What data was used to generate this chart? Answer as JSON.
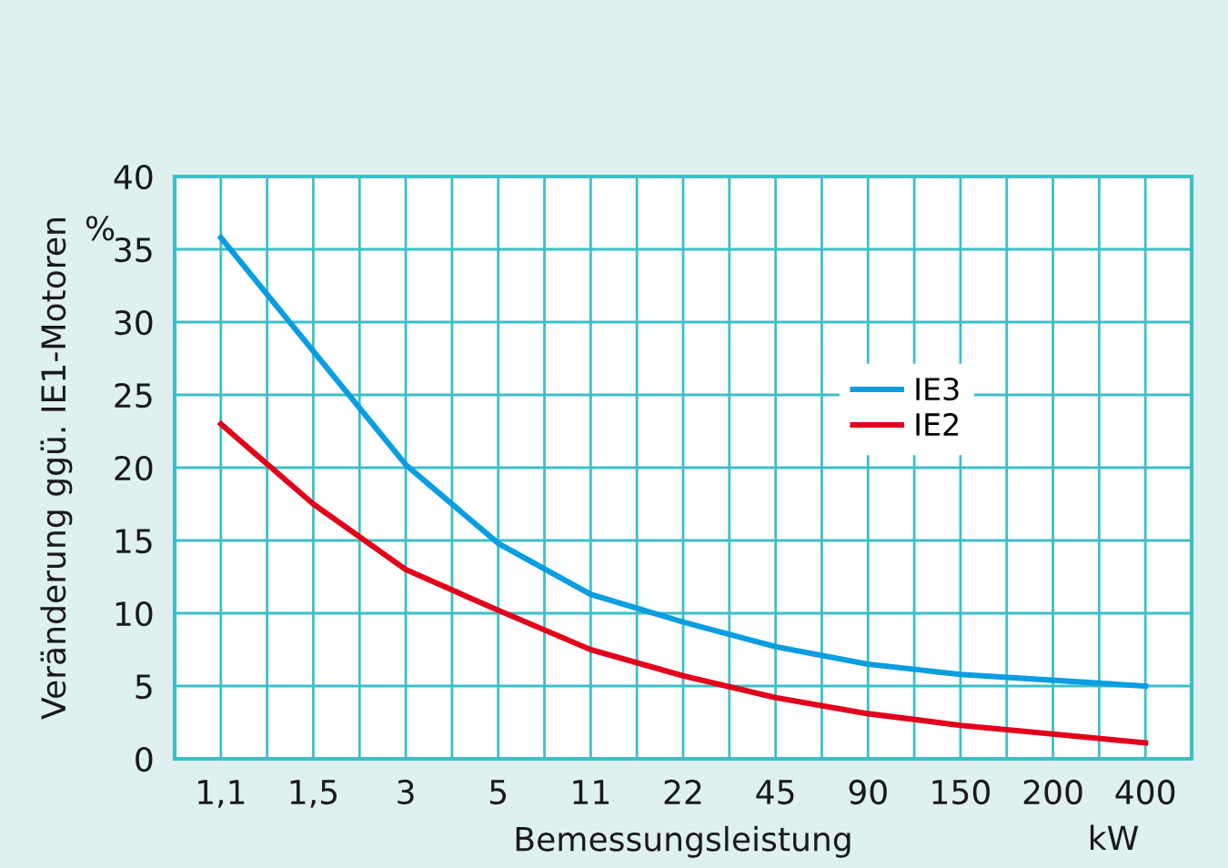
{
  "chart_data": {
    "type": "line",
    "xlabel": "Bemessungsleistung",
    "ylabel": "Veränderung ggü. IE1-Motoren",
    "annotations": [
      "%",
      "kW"
    ],
    "categories": [
      "1,1",
      "1,5",
      "3",
      "5",
      "11",
      "22",
      "45",
      "90",
      "150",
      "200",
      "400"
    ],
    "series": [
      {
        "name": "IE3",
        "color": "#0a9ee0",
        "values": [
          35.8,
          28,
          20.2,
          14.8,
          11.3,
          9.4,
          7.7,
          6.5,
          5.8,
          5.4,
          5.0
        ]
      },
      {
        "name": "IE2",
        "color": "#e3001b",
        "values": [
          23.0,
          17.5,
          13.0,
          10.2,
          7.5,
          5.7,
          4.2,
          3.1,
          2.3,
          1.7,
          1.1
        ]
      }
    ],
    "ylim": [
      0,
      40
    ],
    "yticks": [
      0,
      5,
      10,
      15,
      20,
      25,
      30,
      35,
      40
    ],
    "grid": true,
    "legend": "right",
    "line_style": "solid",
    "marker": "none"
  }
}
